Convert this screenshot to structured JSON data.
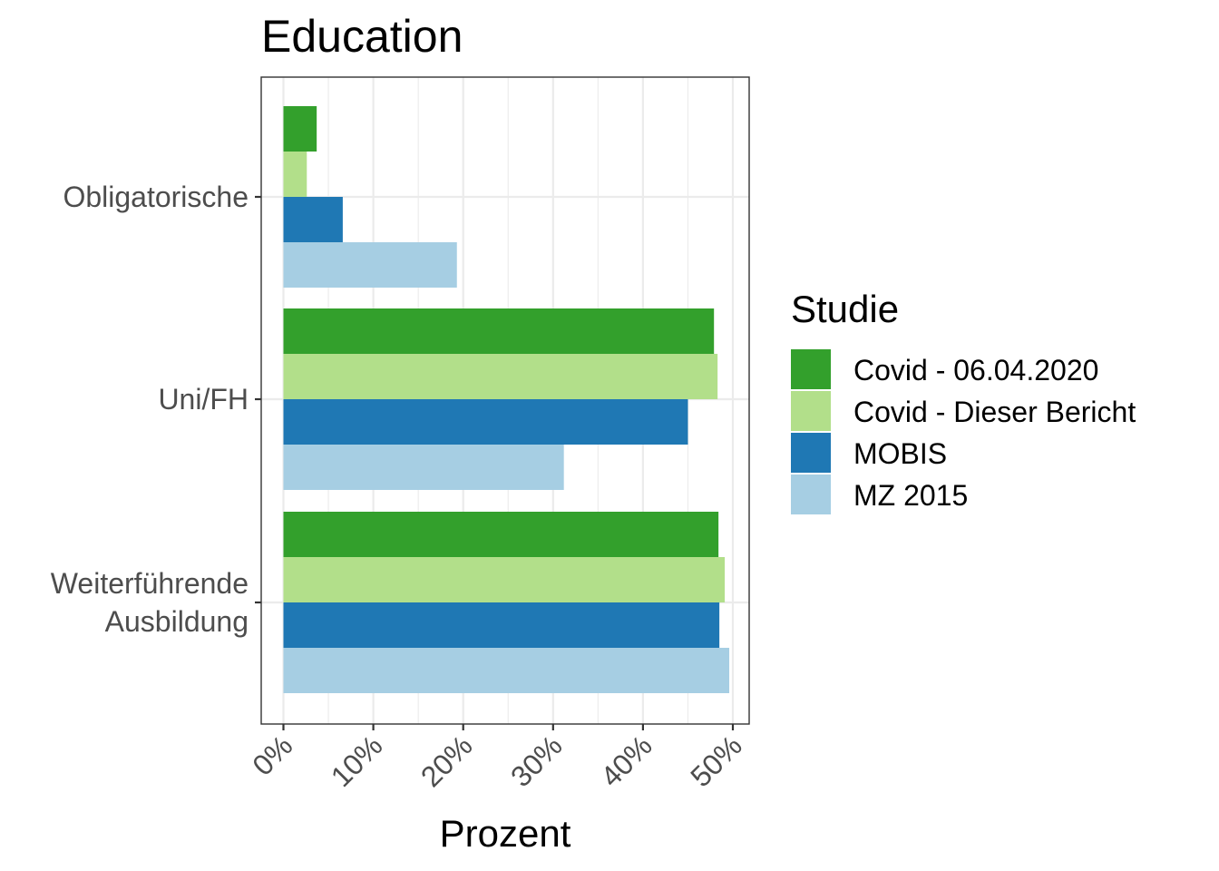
{
  "chart_data": {
    "type": "bar",
    "orientation": "horizontal",
    "title": "Education",
    "xlabel": "Prozent",
    "ylabel": "",
    "xlim": [
      0,
      50
    ],
    "x_ticks": [
      0,
      10,
      20,
      30,
      40,
      50
    ],
    "x_tick_labels": [
      "0%",
      "10%",
      "20%",
      "30%",
      "40%",
      "50%"
    ],
    "categories": [
      [
        "Obligatorische"
      ],
      [
        "Uni/FH"
      ],
      [
        "Weiterführende",
        "Ausbildung"
      ]
    ],
    "legend_title": "Studie",
    "legend_position": "right",
    "grid": true,
    "series": [
      {
        "name": "Covid - 06.04.2020",
        "color": "#33a02c",
        "values": [
          3.7,
          47.9,
          48.4
        ]
      },
      {
        "name": "Covid - Dieser Bericht",
        "color": "#b2df8a",
        "values": [
          2.6,
          48.3,
          49.1
        ]
      },
      {
        "name": "MOBIS",
        "color": "#1f78b4",
        "values": [
          6.6,
          45.0,
          48.5
        ]
      },
      {
        "name": "MZ 2015",
        "color": "#a6cee3",
        "values": [
          19.3,
          31.2,
          49.6
        ]
      }
    ]
  }
}
